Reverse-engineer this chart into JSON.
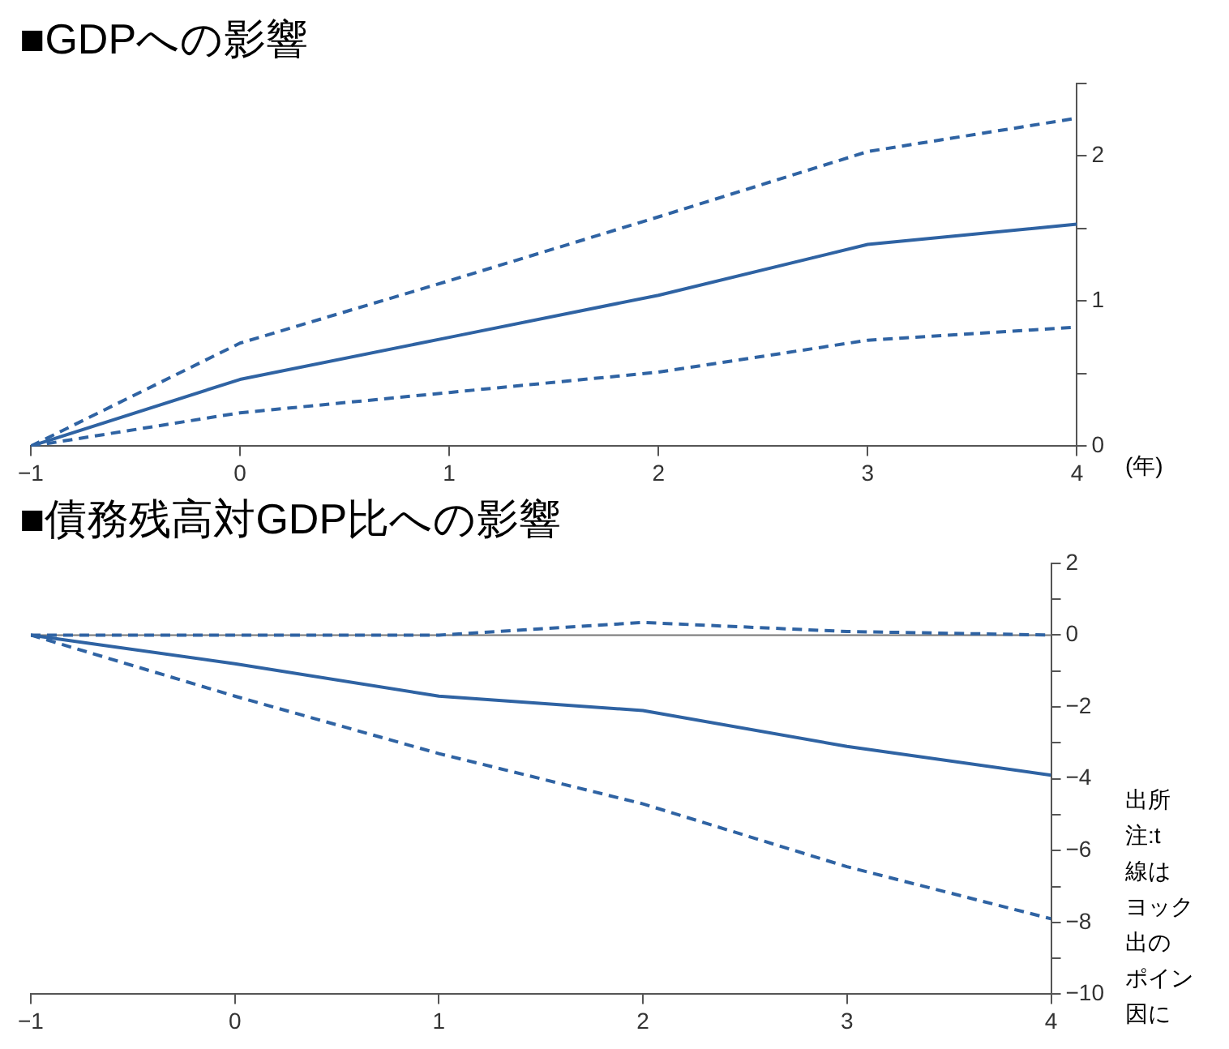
{
  "chart_data": [
    {
      "type": "line",
      "title": "■GDPへの影響",
      "x": [
        -1,
        0,
        1,
        2,
        3,
        4
      ],
      "series": [
        {
          "color": "#2f63a3",
          "line_style": "solid",
          "values": [
            0,
            0.46,
            0.75,
            1.04,
            1.39,
            1.53
          ]
        },
        {
          "color": "#2f63a3",
          "line_style": "dashed",
          "values": [
            0,
            0.71,
            1.14,
            1.58,
            2.03,
            2.26
          ]
        },
        {
          "color": "#2f63a3",
          "line_style": "dashed",
          "values": [
            0,
            0.23,
            0.37,
            0.51,
            0.73,
            0.82
          ]
        }
      ],
      "xlim": [
        -1,
        4
      ],
      "xticks": [
        {
          "value": -1,
          "label": "−1"
        },
        0,
        1,
        2,
        3,
        4
      ],
      "ylim": [
        0,
        2.5
      ],
      "yticks": [
        0,
        {
          "value": 0.5,
          "label": null
        },
        1,
        {
          "value": 1.5,
          "label": null
        },
        2,
        {
          "value": 2.5,
          "label": null
        }
      ],
      "grid": false,
      "legend": false,
      "marker": "none",
      "annotations": [
        "(年)"
      ]
    },
    {
      "type": "line",
      "title": "■債務残高対GDP比への影響",
      "x": [
        -1,
        0,
        1,
        2,
        3,
        4
      ],
      "series": [
        {
          "color": "#2f63a3",
          "line_style": "solid",
          "values": [
            0,
            -0.8,
            -1.7,
            -2.1,
            -3.1,
            -3.9
          ]
        },
        {
          "color": "#2f63a3",
          "line_style": "dashed",
          "values": [
            0,
            0,
            0,
            0.35,
            0.1,
            0
          ]
        },
        {
          "color": "#2f63a3",
          "line_style": "dashed",
          "values": [
            0,
            -1.7,
            -3.3,
            -4.7,
            -6.45,
            -7.9
          ]
        }
      ],
      "xlim": [
        -1,
        4
      ],
      "xticks": [
        {
          "value": -1,
          "label": "−1"
        },
        0,
        1,
        2,
        3,
        4
      ],
      "ylim": [
        -10,
        2
      ],
      "yticks": [
        {
          "value": -10,
          "label": "−10"
        },
        {
          "value": -9,
          "label": null
        },
        {
          "value": -8,
          "label": "−8"
        },
        {
          "value": -7,
          "label": null
        },
        {
          "value": -6,
          "label": "−6"
        },
        {
          "value": -5,
          "label": null
        },
        {
          "value": -4,
          "label": "−4"
        },
        {
          "value": -3,
          "label": null
        },
        {
          "value": -2,
          "label": "−2"
        },
        {
          "value": -1,
          "label": null
        },
        0,
        {
          "value": 1,
          "label": null
        },
        2
      ],
      "ref_lines": [
        {
          "axis": "y",
          "value": 0,
          "color": "#777777"
        }
      ],
      "grid": false,
      "legend": false,
      "marker": "none",
      "annotations": [
        "出所",
        "注:t",
        "線は",
        "ヨック",
        "出の",
        "ポイン",
        "因に"
      ]
    }
  ]
}
